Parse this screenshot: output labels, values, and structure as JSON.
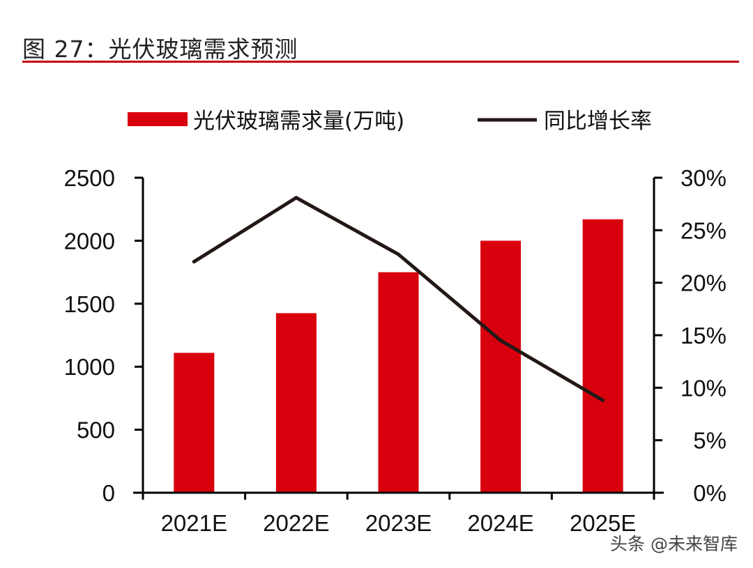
{
  "figure": {
    "title": "图 27：光伏玻璃需求预测",
    "watermark": "头条 @未来智库"
  },
  "colors": {
    "bar": "#d9000d",
    "line": "#231815",
    "rule": "#c0000b",
    "axis": "#000000"
  },
  "chart_data": {
    "type": "bar",
    "title": "",
    "categories": [
      "2021E",
      "2022E",
      "2023E",
      "2024E",
      "2025E"
    ],
    "series": [
      {
        "name": "光伏玻璃需求量(万吨)",
        "type": "bar",
        "axis": "left",
        "values": [
          1110,
          1425,
          1750,
          2000,
          2170
        ]
      },
      {
        "name": "同比增长率",
        "type": "line",
        "axis": "right",
        "values": [
          22.0,
          28.1,
          22.7,
          14.5,
          8.8
        ]
      }
    ],
    "y_left": {
      "label": "",
      "range": [
        0,
        2500
      ],
      "ticks": [
        "0",
        "500",
        "1000",
        "1500",
        "2000",
        "2500"
      ]
    },
    "y_right": {
      "label": "",
      "range": [
        0,
        30
      ],
      "ticks": [
        "0%",
        "5%",
        "10%",
        "15%",
        "20%",
        "25%",
        "30%"
      ]
    },
    "legend_position": "top",
    "grid": false
  }
}
